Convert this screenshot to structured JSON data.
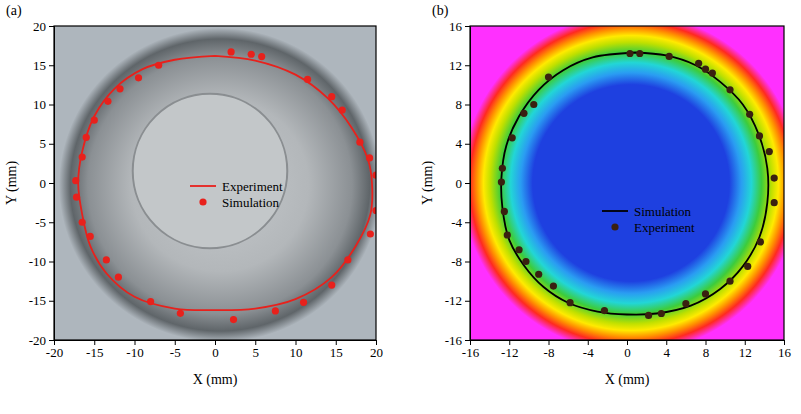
{
  "chart_data": [
    {
      "type": "scatter",
      "title": "(a)",
      "x_label": "X (mm)",
      "y_label": "Y (mm)",
      "xlim": [
        -20,
        20
      ],
      "ylim": [
        -20,
        20
      ],
      "xticks": [
        -20,
        -15,
        -10,
        -5,
        0,
        5,
        10,
        15,
        20
      ],
      "yticks": [
        -20,
        -15,
        -10,
        -5,
        0,
        5,
        10,
        15,
        20
      ],
      "grid": false,
      "legend": "center",
      "series": [
        {
          "name": "Experiment",
          "type": "line",
          "line_style": "solid",
          "color": "#e8211c",
          "x": [
            0,
            5,
            10,
            14,
            17,
            19,
            19.5,
            19.3,
            17.5,
            14.5,
            10,
            5,
            0,
            -5,
            -10,
            -13.5,
            -15.5,
            -16.5,
            -17,
            -16.5,
            -15,
            -12.5,
            -9,
            -5,
            0
          ],
          "values": [
            16.2,
            15.6,
            13.8,
            10.8,
            7,
            3,
            0,
            -4,
            -8,
            -12,
            -14.8,
            -16,
            -16.2,
            -16,
            -14.5,
            -11.5,
            -8,
            -4,
            0,
            4,
            8.5,
            12,
            14.5,
            15.7,
            16.2
          ]
        },
        {
          "name": "Simulation",
          "type": "scatter",
          "marker": "circle",
          "color": "#e8211c",
          "x": [
            2,
            4.5,
            5.8,
            11.5,
            14.5,
            15.8,
            18,
            19.2,
            20,
            20,
            19.3,
            16.5,
            14.5,
            11,
            7.5,
            2.3,
            -4.3,
            -8,
            -12,
            -13.5,
            -15.5,
            -16.5,
            -17.2,
            -17.3,
            -16.5,
            -16,
            -15,
            -13.3,
            -11.8,
            -9.5,
            -7
          ],
          "values": [
            16.7,
            16.4,
            16.1,
            13.2,
            11,
            9.3,
            5.2,
            3.2,
            1,
            -3.5,
            -6.5,
            -9.8,
            -13,
            -15.2,
            -16.3,
            -17.4,
            -16.6,
            -15.1,
            -12,
            -9.8,
            -6.8,
            -5,
            -1.8,
            0.3,
            3.3,
            5.8,
            8,
            10.4,
            12,
            13.4,
            15
          ]
        }
      ]
    },
    {
      "type": "scatter",
      "title": "(b)",
      "x_label": "X (mm)",
      "y_label": "Y (mm)",
      "xlim": [
        -16,
        16
      ],
      "ylim": [
        -16,
        16
      ],
      "xticks": [
        -16,
        -12,
        -8,
        -4,
        0,
        4,
        8,
        12,
        16
      ],
      "yticks": [
        -16,
        -12,
        -8,
        -4,
        0,
        4,
        8,
        12,
        16
      ],
      "grid": false,
      "legend": "center",
      "series": [
        {
          "name": "Simulation",
          "type": "line",
          "line_style": "solid",
          "color": "#000000",
          "x": [
            0.8,
            4,
            7,
            9.5,
            11.8,
            13.4,
            14.3,
            14.3,
            13.5,
            11.8,
            9.5,
            6.5,
            3,
            0,
            -3,
            -6,
            -8.5,
            -10.5,
            -12,
            -12.7,
            -12.8,
            -12.3,
            -11,
            -9,
            -6.5,
            -3.5,
            0.8
          ],
          "values": [
            13.3,
            13,
            12,
            10.3,
            8,
            5,
            1.5,
            -2,
            -5.5,
            -8.5,
            -10.8,
            -12.5,
            -13.3,
            -13.4,
            -13.1,
            -12.2,
            -10.6,
            -8.4,
            -5.8,
            -2.5,
            0.5,
            3.8,
            6.8,
            9.5,
            11.5,
            12.8,
            13.3
          ]
        },
        {
          "name": "Experiment",
          "type": "scatter",
          "marker": "circle",
          "color": "#3a2010",
          "x": [
            0.3,
            1.3,
            4.3,
            7.3,
            8,
            8.7,
            10.5,
            12.5,
            13.5,
            14.5,
            15,
            15,
            13.6,
            12.3,
            10.5,
            8,
            6,
            3.5,
            2.2,
            -2.3,
            -5.8,
            -7.5,
            -9,
            -10.3,
            -11,
            -12.2,
            -12.5,
            -12.8,
            -12.7,
            -11.7,
            -10.5,
            -9.5,
            -8
          ],
          "values": [
            13.2,
            13.2,
            12.9,
            12.2,
            11.6,
            11.2,
            9.5,
            7,
            4.8,
            3.2,
            0.5,
            -2,
            -6,
            -8.5,
            -10,
            -11.3,
            -12.3,
            -13.3,
            -13.5,
            -13,
            -12.2,
            -10.5,
            -9.3,
            -8,
            -6.8,
            -5.3,
            -2.9,
            0.1,
            1.5,
            4.6,
            7.1,
            8,
            10.8
          ]
        }
      ]
    }
  ]
}
